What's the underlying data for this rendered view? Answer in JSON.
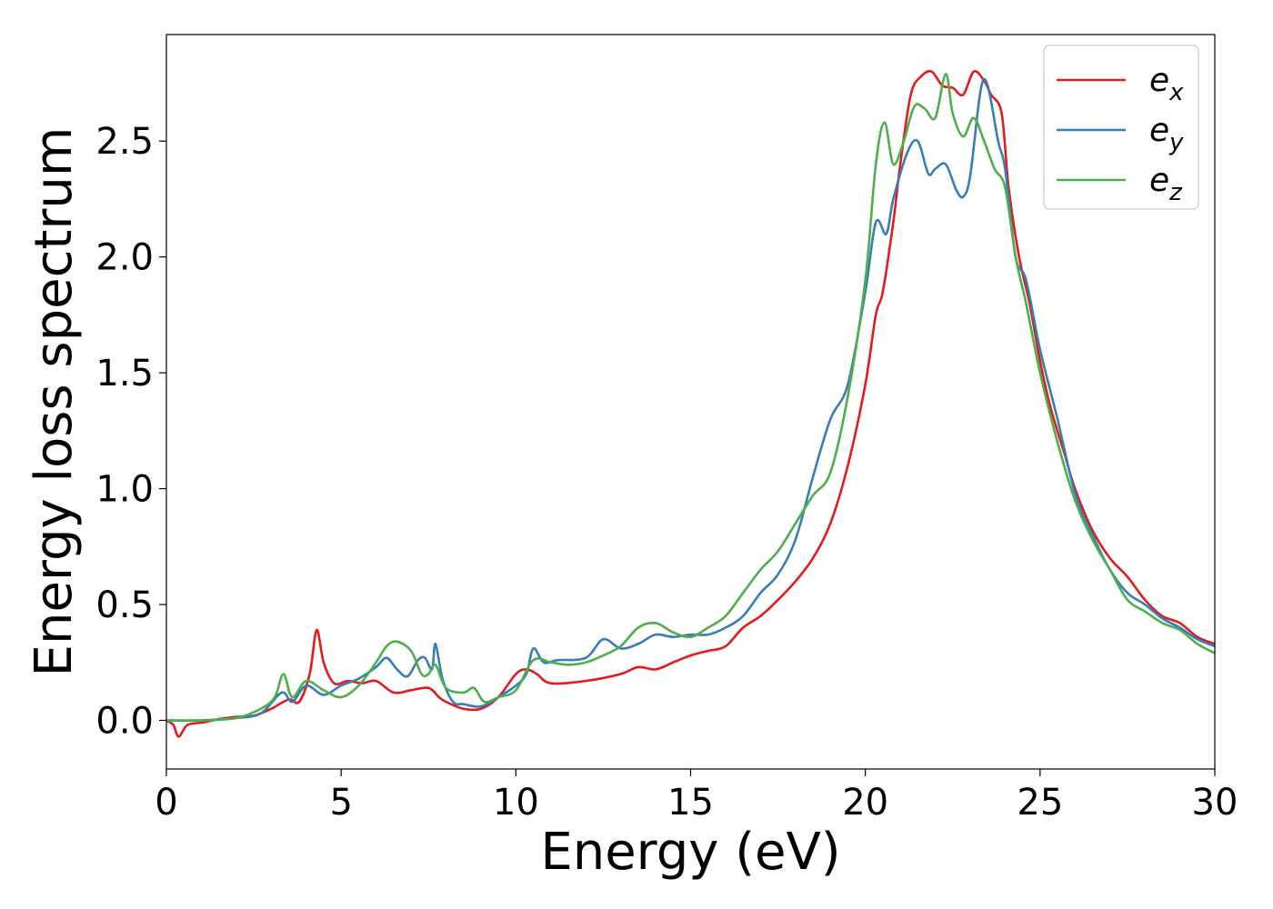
{
  "chart_data": {
    "type": "line",
    "title": "",
    "xlabel": "Energy (eV)",
    "ylabel": "Energy loss spectrum",
    "xlim": [
      0,
      30
    ],
    "ylim": [
      -0.21,
      2.96
    ],
    "xticks": [
      0,
      5,
      10,
      15,
      20,
      25,
      30
    ],
    "xtick_labels": [
      "0",
      "5",
      "10",
      "15",
      "20",
      "25",
      "30"
    ],
    "yticks": [
      0.0,
      0.5,
      1.0,
      1.5,
      2.0,
      2.5
    ],
    "ytick_labels": [
      "0.0",
      "0.5",
      "1.0",
      "1.5",
      "2.0",
      "2.5"
    ],
    "grid": false,
    "legend_position": "top-right",
    "series": [
      {
        "name": "e_x",
        "label_base": "e",
        "label_sub": "x",
        "color": "#e41a1c",
        "points": [
          [
            0,
            0
          ],
          [
            0.2,
            -0.02
          ],
          [
            0.35,
            -0.07
          ],
          [
            0.6,
            -0.02
          ],
          [
            1,
            -0.01
          ],
          [
            1.5,
            0.005
          ],
          [
            2,
            0.015
          ],
          [
            2.5,
            0.02
          ],
          [
            3,
            0.05
          ],
          [
            3.5,
            0.09
          ],
          [
            3.8,
            0.08
          ],
          [
            4.1,
            0.2
          ],
          [
            4.3,
            0.39
          ],
          [
            4.5,
            0.25
          ],
          [
            4.8,
            0.16
          ],
          [
            5.2,
            0.17
          ],
          [
            5.6,
            0.16
          ],
          [
            6,
            0.17
          ],
          [
            6.5,
            0.12
          ],
          [
            7,
            0.13
          ],
          [
            7.5,
            0.14
          ],
          [
            7.8,
            0.1
          ],
          [
            8,
            0.08
          ],
          [
            8.5,
            0.05
          ],
          [
            9,
            0.05
          ],
          [
            9.5,
            0.1
          ],
          [
            10,
            0.2
          ],
          [
            10.3,
            0.22
          ],
          [
            10.6,
            0.2
          ],
          [
            11,
            0.16
          ],
          [
            12,
            0.17
          ],
          [
            13,
            0.2
          ],
          [
            13.5,
            0.23
          ],
          [
            14,
            0.22
          ],
          [
            14.5,
            0.25
          ],
          [
            15,
            0.28
          ],
          [
            15.5,
            0.3
          ],
          [
            16,
            0.32
          ],
          [
            16.5,
            0.4
          ],
          [
            17,
            0.45
          ],
          [
            17.5,
            0.52
          ],
          [
            18,
            0.6
          ],
          [
            18.5,
            0.7
          ],
          [
            19,
            0.85
          ],
          [
            19.5,
            1.1
          ],
          [
            20,
            1.45
          ],
          [
            20.3,
            1.75
          ],
          [
            20.5,
            1.85
          ],
          [
            20.8,
            2.15
          ],
          [
            21,
            2.4
          ],
          [
            21.3,
            2.7
          ],
          [
            21.6,
            2.78
          ],
          [
            21.9,
            2.8
          ],
          [
            22.2,
            2.74
          ],
          [
            22.5,
            2.73
          ],
          [
            22.8,
            2.7
          ],
          [
            23.1,
            2.8
          ],
          [
            23.4,
            2.76
          ],
          [
            23.6,
            2.7
          ],
          [
            23.9,
            2.62
          ],
          [
            24.1,
            2.3
          ],
          [
            24.4,
            2.0
          ],
          [
            24.7,
            1.8
          ],
          [
            25,
            1.55
          ],
          [
            25.3,
            1.35
          ],
          [
            25.7,
            1.15
          ],
          [
            26,
            1.0
          ],
          [
            26.5,
            0.82
          ],
          [
            27,
            0.7
          ],
          [
            27.5,
            0.62
          ],
          [
            28,
            0.52
          ],
          [
            28.5,
            0.45
          ],
          [
            29,
            0.42
          ],
          [
            29.5,
            0.36
          ],
          [
            30,
            0.33
          ]
        ]
      },
      {
        "name": "e_y",
        "label_base": "e",
        "label_sub": "y",
        "color": "#377eb8",
        "points": [
          [
            0,
            0
          ],
          [
            1,
            0
          ],
          [
            2,
            0.01
          ],
          [
            2.7,
            0.03
          ],
          [
            3.3,
            0.12
          ],
          [
            3.6,
            0.08
          ],
          [
            4,
            0.15
          ],
          [
            4.5,
            0.11
          ],
          [
            5,
            0.15
          ],
          [
            5.5,
            0.18
          ],
          [
            6,
            0.23
          ],
          [
            6.3,
            0.27
          ],
          [
            6.6,
            0.22
          ],
          [
            6.9,
            0.19
          ],
          [
            7.2,
            0.26
          ],
          [
            7.4,
            0.27
          ],
          [
            7.6,
            0.22
          ],
          [
            7.7,
            0.33
          ],
          [
            7.9,
            0.18
          ],
          [
            8.2,
            0.08
          ],
          [
            8.5,
            0.07
          ],
          [
            9,
            0.06
          ],
          [
            9.5,
            0.1
          ],
          [
            10,
            0.15
          ],
          [
            10.3,
            0.2
          ],
          [
            10.5,
            0.31
          ],
          [
            10.8,
            0.25
          ],
          [
            11.2,
            0.26
          ],
          [
            12,
            0.27
          ],
          [
            12.5,
            0.35
          ],
          [
            13,
            0.31
          ],
          [
            13.5,
            0.33
          ],
          [
            14,
            0.37
          ],
          [
            14.5,
            0.36
          ],
          [
            15,
            0.37
          ],
          [
            15.5,
            0.37
          ],
          [
            16,
            0.4
          ],
          [
            16.5,
            0.45
          ],
          [
            17,
            0.55
          ],
          [
            17.5,
            0.63
          ],
          [
            18,
            0.78
          ],
          [
            18.5,
            1.05
          ],
          [
            19,
            1.3
          ],
          [
            19.5,
            1.45
          ],
          [
            20,
            1.85
          ],
          [
            20.3,
            2.15
          ],
          [
            20.6,
            2.1
          ],
          [
            20.8,
            2.25
          ],
          [
            21.2,
            2.45
          ],
          [
            21.5,
            2.5
          ],
          [
            21.8,
            2.36
          ],
          [
            22,
            2.38
          ],
          [
            22.3,
            2.4
          ],
          [
            22.6,
            2.29
          ],
          [
            22.8,
            2.26
          ],
          [
            23,
            2.35
          ],
          [
            23.3,
            2.72
          ],
          [
            23.5,
            2.74
          ],
          [
            23.8,
            2.5
          ],
          [
            24,
            2.38
          ],
          [
            24.3,
            2.0
          ],
          [
            24.6,
            1.9
          ],
          [
            25,
            1.6
          ],
          [
            25.5,
            1.3
          ],
          [
            26,
            0.98
          ],
          [
            26.5,
            0.8
          ],
          [
            27,
            0.65
          ],
          [
            27.5,
            0.55
          ],
          [
            28,
            0.5
          ],
          [
            28.5,
            0.44
          ],
          [
            29,
            0.4
          ],
          [
            29.5,
            0.35
          ],
          [
            30,
            0.32
          ]
        ]
      },
      {
        "name": "e_z",
        "label_base": "e",
        "label_sub": "z",
        "color": "#4daf4a",
        "points": [
          [
            0,
            0
          ],
          [
            1,
            0
          ],
          [
            2,
            0.01
          ],
          [
            2.7,
            0.05
          ],
          [
            3.1,
            0.1
          ],
          [
            3.35,
            0.2
          ],
          [
            3.6,
            0.1
          ],
          [
            4,
            0.17
          ],
          [
            4.5,
            0.13
          ],
          [
            5,
            0.1
          ],
          [
            5.5,
            0.15
          ],
          [
            6,
            0.25
          ],
          [
            6.3,
            0.32
          ],
          [
            6.6,
            0.34
          ],
          [
            7,
            0.3
          ],
          [
            7.3,
            0.2
          ],
          [
            7.5,
            0.2
          ],
          [
            7.7,
            0.24
          ],
          [
            8,
            0.14
          ],
          [
            8.5,
            0.12
          ],
          [
            8.8,
            0.14
          ],
          [
            9.1,
            0.08
          ],
          [
            9.5,
            0.1
          ],
          [
            10,
            0.13
          ],
          [
            10.5,
            0.26
          ],
          [
            11,
            0.25
          ],
          [
            11.5,
            0.24
          ],
          [
            12,
            0.25
          ],
          [
            12.5,
            0.28
          ],
          [
            13,
            0.32
          ],
          [
            13.5,
            0.4
          ],
          [
            14,
            0.42
          ],
          [
            14.5,
            0.38
          ],
          [
            15,
            0.36
          ],
          [
            15.5,
            0.4
          ],
          [
            16,
            0.45
          ],
          [
            16.5,
            0.55
          ],
          [
            17,
            0.65
          ],
          [
            17.5,
            0.73
          ],
          [
            18,
            0.85
          ],
          [
            18.5,
            0.97
          ],
          [
            19,
            1.07
          ],
          [
            19.5,
            1.4
          ],
          [
            20,
            1.9
          ],
          [
            20.3,
            2.4
          ],
          [
            20.55,
            2.58
          ],
          [
            20.8,
            2.4
          ],
          [
            21.1,
            2.5
          ],
          [
            21.4,
            2.65
          ],
          [
            21.7,
            2.64
          ],
          [
            22,
            2.6
          ],
          [
            22.3,
            2.79
          ],
          [
            22.5,
            2.62
          ],
          [
            22.8,
            2.52
          ],
          [
            23.1,
            2.6
          ],
          [
            23.4,
            2.5
          ],
          [
            23.7,
            2.38
          ],
          [
            24,
            2.3
          ],
          [
            24.3,
            2.0
          ],
          [
            24.6,
            1.8
          ],
          [
            25,
            1.5
          ],
          [
            25.5,
            1.2
          ],
          [
            26,
            0.95
          ],
          [
            26.5,
            0.78
          ],
          [
            27,
            0.65
          ],
          [
            27.5,
            0.52
          ],
          [
            28,
            0.47
          ],
          [
            28.5,
            0.42
          ],
          [
            29,
            0.39
          ],
          [
            29.5,
            0.33
          ],
          [
            30,
            0.29
          ]
        ]
      }
    ]
  }
}
